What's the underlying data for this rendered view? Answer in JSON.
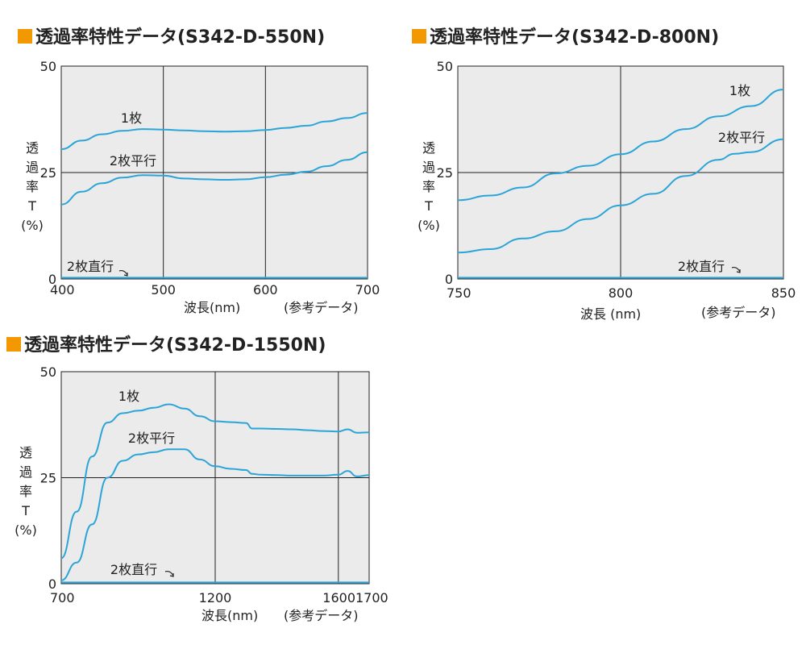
{
  "colors": {
    "accent": "#f39800",
    "line": "#2ba5d8",
    "plot_bg": "#ebebeb",
    "grid": "#222222"
  },
  "chart_data": [
    {
      "type": "line",
      "title": "透過率特性データ(S342-D-550N)",
      "xlabel": "波長(nm)",
      "ylabel": [
        "透",
        "過",
        "率",
        "T",
        "(%)"
      ],
      "note": "(参考データ)",
      "xlim": [
        400,
        700
      ],
      "ylim": [
        0,
        50
      ],
      "xticks": [
        400,
        500,
        600,
        700
      ],
      "yticks": [
        0,
        25,
        50
      ],
      "grid": true,
      "series": [
        {
          "name": "1枚",
          "x": [
            400,
            420,
            440,
            460,
            480,
            500,
            520,
            540,
            560,
            580,
            600,
            620,
            640,
            660,
            680,
            700
          ],
          "y": [
            30.5,
            32.5,
            34.0,
            34.8,
            35.2,
            35.1,
            34.9,
            34.7,
            34.6,
            34.7,
            35.0,
            35.5,
            36.0,
            37.0,
            37.8,
            39.0
          ]
        },
        {
          "name": "2枚平行",
          "x": [
            400,
            420,
            440,
            460,
            480,
            500,
            520,
            540,
            560,
            580,
            600,
            620,
            640,
            660,
            680,
            700
          ],
          "y": [
            17.5,
            20.5,
            22.5,
            23.8,
            24.4,
            24.3,
            23.6,
            23.4,
            23.3,
            23.4,
            23.9,
            24.5,
            25.2,
            26.5,
            28.0,
            29.8
          ]
        },
        {
          "name": "2枚直行",
          "x": [
            400,
            700
          ],
          "y": [
            0.3,
            0.3
          ]
        }
      ]
    },
    {
      "type": "line",
      "title": "透過率特性データ(S342-D-800N)",
      "xlabel": "波長 (nm)",
      "ylabel": [
        "透",
        "過",
        "率",
        "T",
        "(%)"
      ],
      "note": "(参考データ)",
      "xlim": [
        750,
        850
      ],
      "ylim": [
        0,
        50
      ],
      "xticks": [
        750,
        800,
        850
      ],
      "yticks": [
        0,
        25,
        50
      ],
      "grid": true,
      "series": [
        {
          "name": "1枚",
          "x": [
            750,
            760,
            770,
            780,
            790,
            800,
            810,
            820,
            830,
            840,
            850
          ],
          "y": [
            18.5,
            19.6,
            21.5,
            24.8,
            26.6,
            29.3,
            32.3,
            35.2,
            38.2,
            40.6,
            44.5
          ]
        },
        {
          "name": "2枚平行",
          "x": [
            750,
            760,
            770,
            780,
            790,
            800,
            810,
            820,
            830,
            835,
            840,
            850
          ],
          "y": [
            6.2,
            7.0,
            9.5,
            11.2,
            14.1,
            17.3,
            20.0,
            24.2,
            28.0,
            29.4,
            29.8,
            32.8
          ]
        },
        {
          "name": "2枚直行",
          "x": [
            750,
            850
          ],
          "y": [
            0.3,
            0.3
          ]
        }
      ]
    },
    {
      "type": "line",
      "title": "透過率特性データ(S342-D-1550N)",
      "xlabel": "波長(nm)",
      "ylabel": [
        "透",
        "過",
        "率",
        "T",
        "(%)"
      ],
      "note": "(参考データ)",
      "xlim": [
        700,
        1700
      ],
      "ylim": [
        0,
        50
      ],
      "xticks": [
        700,
        1200,
        1600,
        1700
      ],
      "yticks": [
        0,
        25,
        50
      ],
      "grid": true,
      "series": [
        {
          "name": "1枚",
          "x": [
            700,
            750,
            800,
            850,
            900,
            950,
            1000,
            1050,
            1100,
            1150,
            1200,
            1250,
            1300,
            1320,
            1350,
            1400,
            1450,
            1500,
            1550,
            1600,
            1630,
            1660,
            1700
          ],
          "y": [
            6.0,
            17.0,
            30.0,
            38.0,
            40.2,
            40.8,
            41.5,
            42.3,
            41.3,
            39.5,
            38.3,
            38.1,
            37.9,
            36.6,
            36.6,
            36.5,
            36.4,
            36.2,
            36.0,
            35.9,
            36.4,
            35.6,
            35.7
          ]
        },
        {
          "name": "2枚平行",
          "x": [
            700,
            750,
            800,
            850,
            900,
            950,
            1000,
            1050,
            1100,
            1150,
            1200,
            1250,
            1300,
            1320,
            1350,
            1400,
            1450,
            1500,
            1550,
            1600,
            1630,
            1660,
            1700
          ],
          "y": [
            0.8,
            5.0,
            14.0,
            25.0,
            29.0,
            30.5,
            31.0,
            31.7,
            31.7,
            29.3,
            27.7,
            27.1,
            26.8,
            25.9,
            25.7,
            25.6,
            25.5,
            25.5,
            25.5,
            25.7,
            26.6,
            25.3,
            25.6
          ]
        },
        {
          "name": "2枚直行",
          "x": [
            700,
            1700
          ],
          "y": [
            0.3,
            0.3
          ]
        }
      ]
    }
  ]
}
